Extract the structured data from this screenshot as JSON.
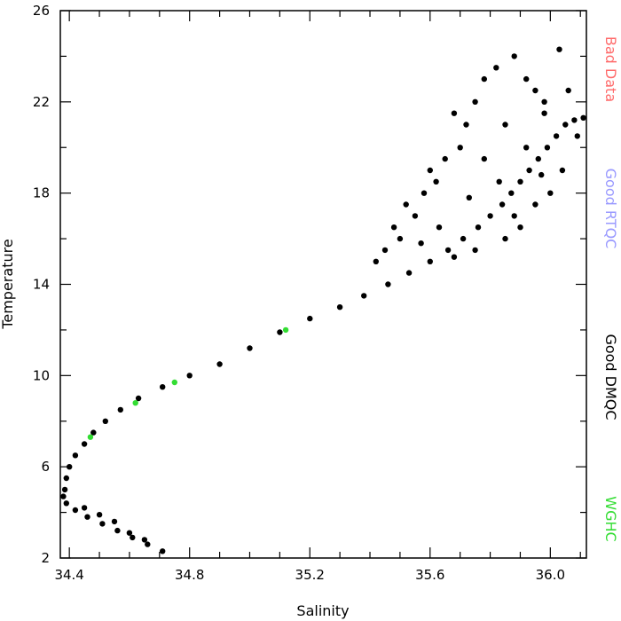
{
  "chart_data": {
    "type": "scatter",
    "title": "",
    "xlabel": "Salinity",
    "ylabel": "Temperature",
    "xlim": [
      34.37,
      36.12
    ],
    "ylim": [
      2,
      26
    ],
    "x_ticks": [
      34.4,
      34.8,
      35.2,
      35.6,
      36.0
    ],
    "x_tick_labels": [
      "34.4",
      "34.8",
      "35.2",
      "35.6",
      "36.0"
    ],
    "y_ticks": [
      2,
      6,
      10,
      14,
      18,
      22,
      26
    ],
    "y_tick_labels": [
      "2",
      "6",
      "10",
      "14",
      "18",
      "22",
      "26"
    ],
    "grid": false,
    "legend_position": "right (vertical text)",
    "legend": [
      {
        "label": "Bad Data",
        "color": "#ff6b6b"
      },
      {
        "label": "Good RTQC",
        "color": "#9999ff"
      },
      {
        "label": "Good DMQC",
        "color": "#000000"
      },
      {
        "label": "WGHC",
        "color": "#33dd33"
      }
    ],
    "series": [
      {
        "name": "Good DMQC",
        "color": "#000000",
        "points": [
          [
            34.71,
            2.3
          ],
          [
            34.66,
            2.6
          ],
          [
            34.61,
            2.9
          ],
          [
            34.56,
            3.2
          ],
          [
            34.51,
            3.5
          ],
          [
            34.46,
            3.8
          ],
          [
            34.42,
            4.1
          ],
          [
            34.39,
            4.4
          ],
          [
            34.38,
            4.7
          ],
          [
            34.385,
            5.0
          ],
          [
            34.39,
            5.5
          ],
          [
            34.4,
            6.0
          ],
          [
            34.42,
            6.5
          ],
          [
            34.45,
            7.0
          ],
          [
            34.48,
            7.5
          ],
          [
            34.52,
            8.0
          ],
          [
            34.57,
            8.5
          ],
          [
            34.63,
            9.0
          ],
          [
            34.71,
            9.5
          ],
          [
            34.8,
            10.0
          ],
          [
            34.9,
            10.5
          ],
          [
            35.0,
            11.2
          ],
          [
            35.1,
            11.9
          ],
          [
            35.2,
            12.5
          ],
          [
            35.3,
            13.0
          ],
          [
            35.38,
            13.5
          ],
          [
            35.46,
            14.0
          ],
          [
            35.53,
            14.5
          ],
          [
            35.6,
            15.0
          ],
          [
            35.66,
            15.5
          ],
          [
            35.71,
            16.0
          ],
          [
            35.76,
            16.5
          ],
          [
            35.8,
            17.0
          ],
          [
            35.84,
            17.5
          ],
          [
            35.87,
            18.0
          ],
          [
            35.9,
            18.5
          ],
          [
            35.93,
            19.0
          ],
          [
            35.96,
            19.5
          ],
          [
            35.99,
            20.0
          ],
          [
            36.02,
            20.5
          ],
          [
            36.05,
            21.0
          ],
          [
            36.08,
            21.2
          ],
          [
            36.11,
            21.3
          ],
          [
            34.45,
            4.2
          ],
          [
            34.5,
            3.9
          ],
          [
            34.55,
            3.6
          ],
          [
            34.6,
            3.1
          ],
          [
            34.65,
            2.8
          ],
          [
            35.5,
            16.0
          ],
          [
            35.55,
            17.0
          ],
          [
            35.58,
            18.0
          ],
          [
            35.62,
            18.5
          ],
          [
            35.65,
            19.5
          ],
          [
            35.7,
            20.0
          ],
          [
            35.72,
            21.0
          ],
          [
            35.75,
            22.0
          ],
          [
            35.78,
            23.0
          ],
          [
            35.82,
            23.5
          ],
          [
            35.88,
            24.0
          ],
          [
            35.92,
            23.0
          ],
          [
            35.95,
            22.5
          ],
          [
            35.98,
            22.0
          ],
          [
            36.03,
            24.3
          ],
          [
            36.06,
            22.5
          ],
          [
            36.04,
            19.0
          ],
          [
            36.0,
            18.0
          ],
          [
            35.95,
            17.5
          ],
          [
            35.9,
            16.5
          ],
          [
            35.85,
            16.0
          ],
          [
            35.75,
            15.5
          ],
          [
            35.68,
            15.2
          ],
          [
            35.45,
            15.5
          ],
          [
            35.42,
            15.0
          ],
          [
            35.48,
            16.5
          ],
          [
            35.52,
            17.5
          ],
          [
            35.6,
            19.0
          ],
          [
            35.68,
            21.5
          ],
          [
            35.85,
            21.0
          ],
          [
            35.92,
            20.0
          ],
          [
            35.97,
            18.8
          ],
          [
            36.09,
            20.5
          ],
          [
            35.78,
            19.5
          ],
          [
            35.83,
            18.5
          ],
          [
            35.63,
            16.5
          ],
          [
            35.57,
            15.8
          ],
          [
            35.73,
            17.8
          ],
          [
            35.88,
            17.0
          ],
          [
            35.98,
            21.5
          ]
        ]
      },
      {
        "name": "WGHC",
        "color": "#33dd33",
        "points": [
          [
            34.62,
            8.8
          ],
          [
            34.75,
            9.7
          ],
          [
            34.47,
            7.3
          ],
          [
            35.12,
            12.0
          ]
        ]
      }
    ]
  }
}
